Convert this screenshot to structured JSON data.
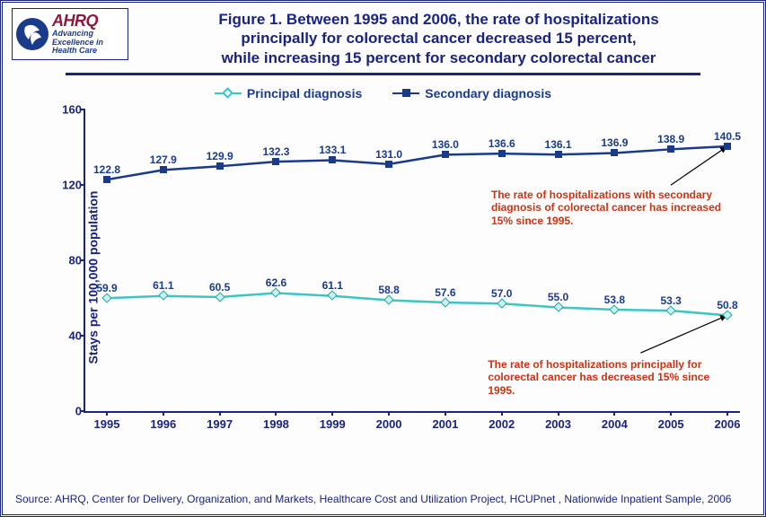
{
  "logo": {
    "brand": "AHRQ",
    "tag_line1": "Advancing",
    "tag_line2": "Excellence in",
    "tag_line3": "Health Care"
  },
  "title_line1": "Figure 1. Between 1995 and 2006, the rate of hospitalizations",
  "title_line2": "principally for colorectal cancer decreased 15 percent,",
  "title_line3": "while increasing 15 percent for secondary colorectal cancer",
  "chart": {
    "type": "line",
    "ylabel": "Stays per 100,000 population",
    "ylim": [
      0,
      160
    ],
    "ytick_step": 40,
    "yticks": [
      0,
      40,
      80,
      120,
      160
    ],
    "categories": [
      "1995",
      "1996",
      "1997",
      "1998",
      "1999",
      "2000",
      "2001",
      "2002",
      "2003",
      "2004",
      "2005",
      "2006"
    ],
    "series": [
      {
        "name": "Principal diagnosis",
        "color": "#3fc4c4",
        "marker": "diamond",
        "line_width": 2.5,
        "values": [
          59.9,
          61.1,
          60.5,
          62.6,
          61.1,
          58.8,
          57.6,
          57.0,
          55.0,
          53.8,
          53.3,
          50.8
        ]
      },
      {
        "name": "Secondary diagnosis",
        "color": "#1a3a8a",
        "marker": "square",
        "line_width": 2.5,
        "values": [
          122.8,
          127.9,
          129.9,
          132.3,
          133.1,
          131.0,
          136.0,
          136.6,
          136.1,
          136.9,
          138.9,
          140.5
        ]
      }
    ],
    "label_fontsize": 12,
    "axis_color": "#1a237e",
    "background_color": "#fdfdfe",
    "annotations": [
      {
        "text": "The rate of hospitalizations with secondary diagnosis of colorectal cancer has increased 15% since 1995.",
        "target_series": 1,
        "target_index": 11
      },
      {
        "text": "The rate of hospitalizations principally for colorectal cancer has decreased 15% since 1995.",
        "target_series": 0,
        "target_index": 11
      }
    ]
  },
  "source": "Source: AHRQ, Center for Delivery, Organization, and Markets, Healthcare Cost and Utilization Project, HCUPnet , Nationwide Inpatient Sample, 2006"
}
